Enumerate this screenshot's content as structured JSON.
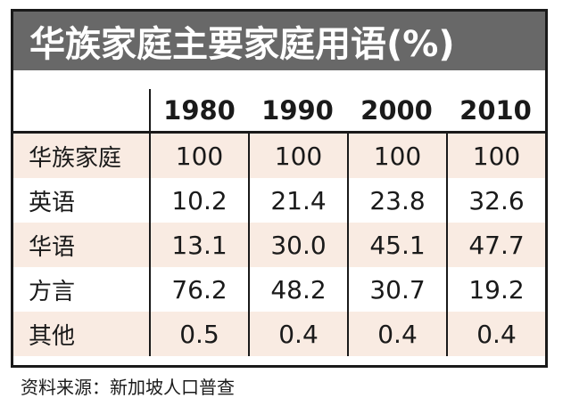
{
  "title": "华族家庭主要家庭用语(%)",
  "source_note": "资料来源：新加坡人口普查",
  "table": {
    "columns": [
      "1980",
      "1990",
      "2000",
      "2010"
    ],
    "rows": [
      {
        "label": "华族家庭",
        "values": [
          "100",
          "100",
          "100",
          "100"
        ]
      },
      {
        "label": "英语",
        "values": [
          "10.2",
          "21.4",
          "23.8",
          "32.6"
        ]
      },
      {
        "label": "华语",
        "values": [
          "13.1",
          "30.0",
          "45.1",
          "47.7"
        ]
      },
      {
        "label": "方言",
        "values": [
          "76.2",
          "48.2",
          "30.7",
          "19.2"
        ]
      },
      {
        "label": "其他",
        "values": [
          "0.5",
          "0.4",
          "0.4",
          "0.4"
        ]
      }
    ]
  },
  "colors": {
    "title_bar_bg": "#686868",
    "title_text": "#ffffff",
    "row_highlight": "#f9ebe2",
    "border_black": "#1a1a1a",
    "page_bg": "#ffffff"
  },
  "chart_data": {
    "type": "table",
    "title": "华族家庭主要家庭用语(%)",
    "categories": [
      1980,
      1990,
      2000,
      2010
    ],
    "series": [
      {
        "name": "华族家庭",
        "values": [
          100,
          100,
          100,
          100
        ]
      },
      {
        "name": "英语",
        "values": [
          10.2,
          21.4,
          23.8,
          32.6
        ]
      },
      {
        "name": "华语",
        "values": [
          13.1,
          30.0,
          45.1,
          47.7
        ]
      },
      {
        "name": "方言",
        "values": [
          76.2,
          48.2,
          30.7,
          19.2
        ]
      },
      {
        "name": "其他",
        "values": [
          0.5,
          0.4,
          0.4,
          0.4
        ]
      }
    ],
    "ylabel": "%",
    "source": "新加坡人口普查"
  }
}
